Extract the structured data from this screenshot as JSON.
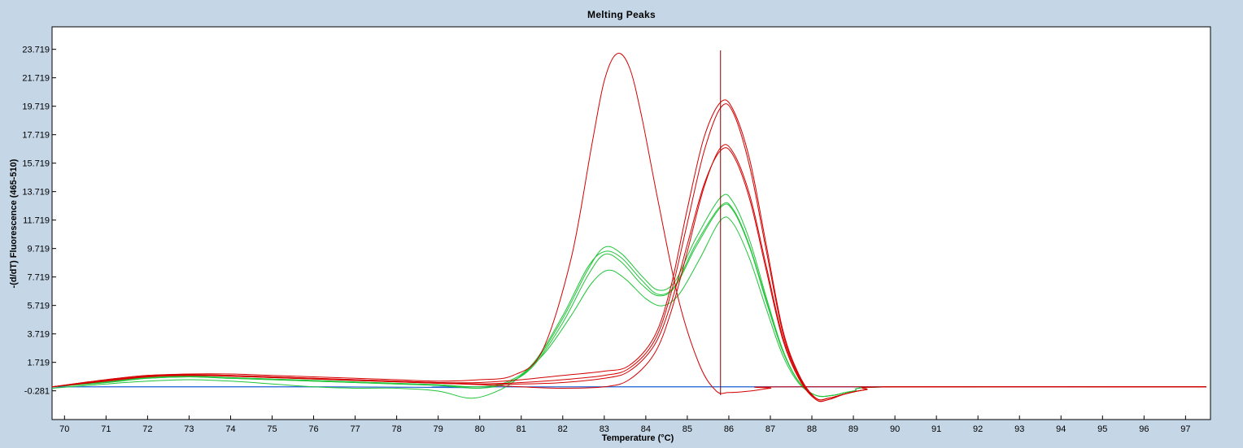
{
  "chart_data": {
    "type": "line",
    "title": "Melting Peaks",
    "xlabel": "Temperature (°C)",
    "ylabel": "-(d/dT) Fluorescence (465-510)",
    "xlim": [
      69.7,
      97.6
    ],
    "ylim": [
      -2.3,
      25.3
    ],
    "x_ticks": [
      70,
      71,
      72,
      73,
      74,
      75,
      76,
      77,
      78,
      79,
      80,
      81,
      82,
      83,
      84,
      85,
      86,
      87,
      88,
      89,
      90,
      91,
      92,
      93,
      94,
      95,
      96,
      97
    ],
    "y_ticks": [
      "-0.281",
      "1.719",
      "3.719",
      "5.719",
      "7.719",
      "9.719",
      "11.719",
      "13.719",
      "15.719",
      "17.719",
      "19.719",
      "21.719",
      "23.719"
    ],
    "cursor_x": 85.8,
    "grid": false,
    "legend": "none",
    "colors": {
      "red": "#d40000",
      "green": "#22c43a",
      "blue": "#1f5fd6",
      "background": "#c5d6e6",
      "plot": "#ffffff"
    },
    "series": [
      {
        "color": "#d40000",
        "points": [
          [
            69.7,
            0.0
          ],
          [
            71,
            0.5
          ],
          [
            72,
            0.8
          ],
          [
            73,
            0.9
          ],
          [
            74,
            0.9
          ],
          [
            75,
            0.8
          ],
          [
            76,
            0.7
          ],
          [
            77,
            0.6
          ],
          [
            78,
            0.5
          ],
          [
            79,
            0.4
          ],
          [
            80,
            0.5
          ],
          [
            80.8,
            0.8
          ],
          [
            81.5,
            2.5
          ],
          [
            82.2,
            9.0
          ],
          [
            82.7,
            17.0
          ],
          [
            83.0,
            21.5
          ],
          [
            83.3,
            23.4
          ],
          [
            83.6,
            22.5
          ],
          [
            83.9,
            19.0
          ],
          [
            84.3,
            13.0
          ],
          [
            84.8,
            6.0
          ],
          [
            85.3,
            1.5
          ],
          [
            85.7,
            -0.3
          ],
          [
            86.0,
            -0.4
          ],
          [
            86.5,
            -0.3
          ],
          [
            87,
            -0.1
          ],
          [
            87.5,
            0.0
          ],
          [
            97.5,
            0.0
          ]
        ]
      },
      {
        "color": "#d40000",
        "points": [
          [
            69.7,
            0.0
          ],
          [
            71,
            0.5
          ],
          [
            72,
            0.8
          ],
          [
            73,
            0.85
          ],
          [
            74,
            0.8
          ],
          [
            75,
            0.7
          ],
          [
            76,
            0.6
          ],
          [
            77,
            0.5
          ],
          [
            78,
            0.4
          ],
          [
            79,
            0.3
          ],
          [
            80,
            0.3
          ],
          [
            81,
            0.5
          ],
          [
            82,
            0.8
          ],
          [
            83,
            1.1
          ],
          [
            83.6,
            1.5
          ],
          [
            84.2,
            3.5
          ],
          [
            84.6,
            7.0
          ],
          [
            85.0,
            12.5
          ],
          [
            85.4,
            17.5
          ],
          [
            85.8,
            20.0
          ],
          [
            86.1,
            19.5
          ],
          [
            86.5,
            16.0
          ],
          [
            86.9,
            10.0
          ],
          [
            87.3,
            4.0
          ],
          [
            87.7,
            0.8
          ],
          [
            88.1,
            -0.8
          ],
          [
            88.4,
            -0.8
          ],
          [
            88.8,
            -0.5
          ],
          [
            89.3,
            -0.2
          ],
          [
            90,
            0.0
          ],
          [
            97.5,
            0.0
          ]
        ]
      },
      {
        "color": "#d40000",
        "points": [
          [
            69.7,
            0.0
          ],
          [
            71,
            0.4
          ],
          [
            72,
            0.7
          ],
          [
            73,
            0.8
          ],
          [
            74,
            0.75
          ],
          [
            75,
            0.65
          ],
          [
            76,
            0.55
          ],
          [
            77,
            0.45
          ],
          [
            78,
            0.35
          ],
          [
            79,
            0.25
          ],
          [
            80,
            0.2
          ],
          [
            81,
            0.3
          ],
          [
            82,
            0.5
          ],
          [
            83,
            0.8
          ],
          [
            83.6,
            1.3
          ],
          [
            84.2,
            3.2
          ],
          [
            84.6,
            6.5
          ],
          [
            85.0,
            11.5
          ],
          [
            85.4,
            16.5
          ],
          [
            85.8,
            19.6
          ],
          [
            86.1,
            19.3
          ],
          [
            86.5,
            15.5
          ],
          [
            86.9,
            9.6
          ],
          [
            87.3,
            3.8
          ],
          [
            87.7,
            0.7
          ],
          [
            88.1,
            -0.9
          ],
          [
            88.4,
            -0.9
          ],
          [
            88.8,
            -0.5
          ],
          [
            89.3,
            -0.2
          ],
          [
            90,
            0.0
          ],
          [
            97.5,
            0.0
          ]
        ]
      },
      {
        "color": "#d40000",
        "points": [
          [
            69.7,
            0.0
          ],
          [
            71,
            0.45
          ],
          [
            72,
            0.75
          ],
          [
            73,
            0.85
          ],
          [
            74,
            0.8
          ],
          [
            75,
            0.7
          ],
          [
            76,
            0.6
          ],
          [
            77,
            0.5
          ],
          [
            78,
            0.4
          ],
          [
            79,
            0.3
          ],
          [
            80,
            0.2
          ],
          [
            81,
            0.2
          ],
          [
            82,
            0.3
          ],
          [
            83,
            0.6
          ],
          [
            83.6,
            1.1
          ],
          [
            84.2,
            2.9
          ],
          [
            84.6,
            5.8
          ],
          [
            85.0,
            10.0
          ],
          [
            85.4,
            14.2
          ],
          [
            85.8,
            16.6
          ],
          [
            86.1,
            16.3
          ],
          [
            86.5,
            13.2
          ],
          [
            86.9,
            8.2
          ],
          [
            87.3,
            3.3
          ],
          [
            87.7,
            0.5
          ],
          [
            88.1,
            -0.9
          ],
          [
            88.4,
            -0.9
          ],
          [
            88.8,
            -0.5
          ],
          [
            89.3,
            -0.2
          ],
          [
            90,
            0.0
          ],
          [
            97.5,
            0.0
          ]
        ]
      },
      {
        "color": "#d40000",
        "points": [
          [
            69.7,
            0.0
          ],
          [
            71,
            0.4
          ],
          [
            72,
            0.7
          ],
          [
            73,
            0.8
          ],
          [
            74,
            0.75
          ],
          [
            75,
            0.65
          ],
          [
            76,
            0.55
          ],
          [
            77,
            0.45
          ],
          [
            78,
            0.35
          ],
          [
            79,
            0.25
          ],
          [
            80,
            0.15
          ],
          [
            81,
            0.0
          ],
          [
            82,
            -0.1
          ],
          [
            83,
            0.0
          ],
          [
            83.6,
            0.5
          ],
          [
            84.2,
            2.3
          ],
          [
            84.6,
            5.2
          ],
          [
            85.0,
            9.5
          ],
          [
            85.4,
            14.0
          ],
          [
            85.8,
            16.8
          ],
          [
            86.1,
            16.5
          ],
          [
            86.5,
            13.5
          ],
          [
            86.9,
            8.5
          ],
          [
            87.3,
            3.5
          ],
          [
            87.7,
            0.6
          ],
          [
            88.1,
            -0.8
          ],
          [
            88.4,
            -0.8
          ],
          [
            88.8,
            -0.5
          ],
          [
            89.3,
            -0.2
          ],
          [
            90,
            0.0
          ],
          [
            97.5,
            0.0
          ]
        ]
      },
      {
        "color": "#22c43a",
        "points": [
          [
            69.7,
            -0.1
          ],
          [
            71,
            0.2
          ],
          [
            72,
            0.4
          ],
          [
            73,
            0.5
          ],
          [
            74,
            0.4
          ],
          [
            75,
            0.2
          ],
          [
            76,
            0.0
          ],
          [
            77,
            -0.1
          ],
          [
            78,
            -0.1
          ],
          [
            79,
            -0.3
          ],
          [
            79.8,
            -0.8
          ],
          [
            80.5,
            -0.2
          ],
          [
            81,
            0.8
          ],
          [
            81.6,
            2.5
          ],
          [
            82.2,
            5.0
          ],
          [
            82.7,
            7.3
          ],
          [
            83.1,
            8.2
          ],
          [
            83.5,
            7.6
          ],
          [
            84.0,
            6.2
          ],
          [
            84.4,
            5.7
          ],
          [
            84.8,
            6.5
          ],
          [
            85.3,
            9.0
          ],
          [
            85.8,
            11.7
          ],
          [
            86.1,
            11.5
          ],
          [
            86.5,
            9.0
          ],
          [
            86.9,
            5.5
          ],
          [
            87.3,
            2.2
          ],
          [
            87.7,
            0.2
          ],
          [
            88.1,
            -0.6
          ],
          [
            88.5,
            -0.6
          ],
          [
            89,
            -0.3
          ],
          [
            90,
            0.0
          ],
          [
            97.5,
            0.0
          ]
        ]
      },
      {
        "color": "#22c43a",
        "points": [
          [
            69.7,
            0.0
          ],
          [
            71,
            0.3
          ],
          [
            72,
            0.6
          ],
          [
            73,
            0.7
          ],
          [
            74,
            0.6
          ],
          [
            75,
            0.5
          ],
          [
            76,
            0.4
          ],
          [
            77,
            0.3
          ],
          [
            78,
            0.2
          ],
          [
            79,
            0.1
          ],
          [
            80,
            -0.1
          ],
          [
            80.7,
            0.3
          ],
          [
            81.3,
            1.5
          ],
          [
            82.0,
            4.5
          ],
          [
            82.6,
            7.8
          ],
          [
            83.0,
            9.3
          ],
          [
            83.4,
            8.8
          ],
          [
            83.9,
            7.2
          ],
          [
            84.3,
            6.4
          ],
          [
            84.7,
            7.0
          ],
          [
            85.2,
            9.8
          ],
          [
            85.8,
            12.6
          ],
          [
            86.1,
            12.4
          ],
          [
            86.5,
            9.8
          ],
          [
            86.9,
            6.0
          ],
          [
            87.3,
            2.5
          ],
          [
            87.7,
            0.3
          ],
          [
            88.1,
            -0.6
          ],
          [
            88.5,
            -0.6
          ],
          [
            89,
            -0.3
          ],
          [
            90,
            0.0
          ],
          [
            97.5,
            0.0
          ]
        ]
      },
      {
        "color": "#22c43a",
        "points": [
          [
            69.7,
            0.0
          ],
          [
            71,
            0.3
          ],
          [
            72,
            0.6
          ],
          [
            73,
            0.7
          ],
          [
            74,
            0.6
          ],
          [
            75,
            0.5
          ],
          [
            76,
            0.4
          ],
          [
            77,
            0.3
          ],
          [
            78,
            0.2
          ],
          [
            79,
            0.1
          ],
          [
            80,
            0.0
          ],
          [
            80.7,
            0.3
          ],
          [
            81.3,
            1.6
          ],
          [
            82.0,
            4.8
          ],
          [
            82.6,
            8.2
          ],
          [
            83.0,
            9.8
          ],
          [
            83.4,
            9.4
          ],
          [
            83.9,
            7.8
          ],
          [
            84.3,
            6.8
          ],
          [
            84.7,
            7.4
          ],
          [
            85.2,
            10.4
          ],
          [
            85.8,
            13.3
          ],
          [
            86.1,
            13.0
          ],
          [
            86.5,
            10.3
          ],
          [
            86.9,
            6.3
          ],
          [
            87.3,
            2.6
          ],
          [
            87.7,
            0.3
          ],
          [
            88.1,
            -0.6
          ],
          [
            88.5,
            -0.6
          ],
          [
            89,
            -0.3
          ],
          [
            90,
            0.0
          ],
          [
            97.5,
            0.0
          ]
        ]
      },
      {
        "color": "#22c43a",
        "points": [
          [
            69.7,
            0.0
          ],
          [
            71,
            0.35
          ],
          [
            72,
            0.65
          ],
          [
            73,
            0.75
          ],
          [
            74,
            0.65
          ],
          [
            75,
            0.55
          ],
          [
            76,
            0.45
          ],
          [
            77,
            0.35
          ],
          [
            78,
            0.25
          ],
          [
            79,
            0.15
          ],
          [
            80,
            0.0
          ],
          [
            80.7,
            0.4
          ],
          [
            81.3,
            1.7
          ],
          [
            82.0,
            5.0
          ],
          [
            82.6,
            8.4
          ],
          [
            83.0,
            9.5
          ],
          [
            83.4,
            9.1
          ],
          [
            83.9,
            7.5
          ],
          [
            84.3,
            6.5
          ],
          [
            84.7,
            7.1
          ],
          [
            85.2,
            10.0
          ],
          [
            85.8,
            12.7
          ],
          [
            86.1,
            12.5
          ],
          [
            86.5,
            9.9
          ],
          [
            86.9,
            6.1
          ],
          [
            87.3,
            2.5
          ],
          [
            87.7,
            0.3
          ],
          [
            88.1,
            -0.6
          ],
          [
            88.5,
            -0.6
          ],
          [
            89,
            -0.3
          ],
          [
            90,
            0.0
          ],
          [
            97.5,
            0.0
          ]
        ]
      },
      {
        "color": "#1f5fd6",
        "points": [
          [
            69.7,
            0.0
          ],
          [
            76.5,
            0.0
          ],
          [
            79.6,
            -0.05
          ],
          [
            80.2,
            0.0
          ],
          [
            97.5,
            0.0
          ]
        ]
      }
    ]
  }
}
